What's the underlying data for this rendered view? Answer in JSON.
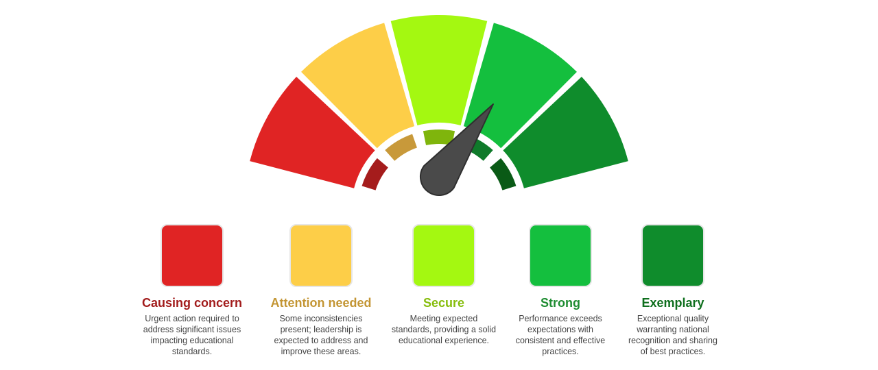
{
  "gauge": {
    "levels": [
      {
        "title": "Causing concern",
        "color": "#e02424",
        "ring_color": "#a51c1c",
        "title_color": "#a21c1c",
        "description": [
          "Urgent action required to",
          "address significant issues",
          "impacting educational",
          "standards."
        ]
      },
      {
        "title": "Attention needed",
        "color": "#fdce48",
        "ring_color": "#c8993a",
        "title_color": "#c39533",
        "description": [
          "Some inconsistencies",
          "present; leadership is",
          "expected to address and",
          "improve these areas."
        ]
      },
      {
        "title": "Secure",
        "color": "#a4f811",
        "ring_color": "#7fb50c",
        "title_color": "#86bd0c",
        "description": [
          "Meeting expected",
          "standards, providing a solid",
          "educational experience."
        ]
      },
      {
        "title": "Strong",
        "color": "#14bf3e",
        "ring_color": "#0f7a2a",
        "title_color": "#1e8c31",
        "description": [
          "Performance exceeds",
          "expectations with",
          "consistent and effective",
          "practices."
        ]
      },
      {
        "title": "Exemplary",
        "color": "#0f8c2c",
        "ring_color": "#0a5a16",
        "title_color": "#0f6f1e",
        "description": [
          "Exceptional quality",
          "warranting national",
          "recognition and sharing",
          "of best practices."
        ]
      }
    ]
  }
}
